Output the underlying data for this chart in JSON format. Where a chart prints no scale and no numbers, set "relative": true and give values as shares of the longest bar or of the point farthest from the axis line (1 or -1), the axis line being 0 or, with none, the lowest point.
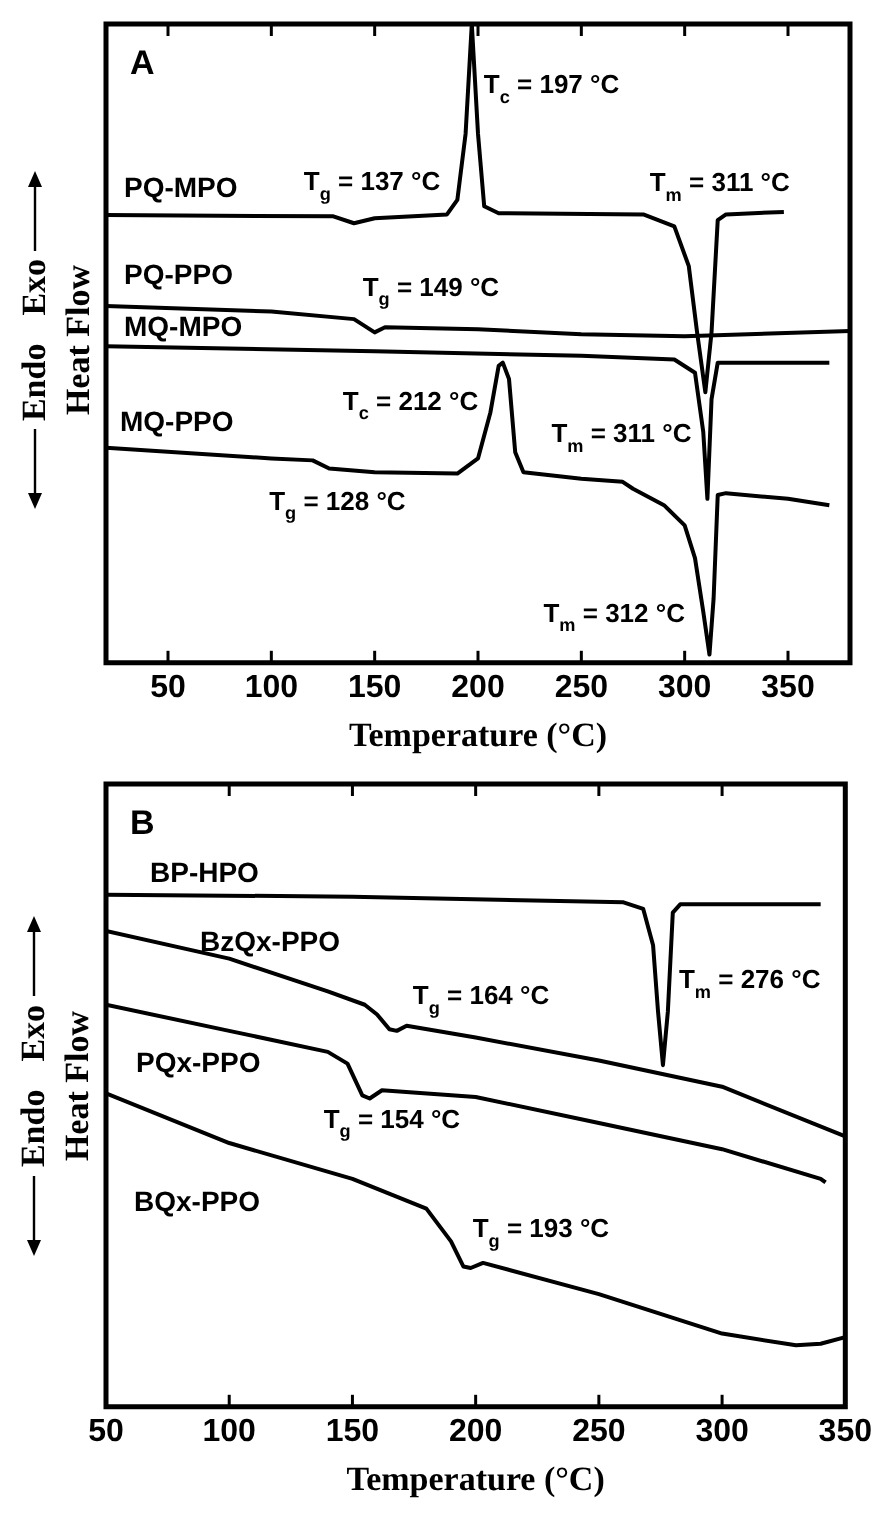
{
  "chart_data": [
    {
      "type": "line",
      "title": "A",
      "xlabel": "Temperature (°C)",
      "ylabel": "Heat Flow",
      "relative": true,
      "legend": false,
      "marker": "none",
      "xlim": [
        20,
        380
      ],
      "xticks": [
        50,
        100,
        150,
        200,
        250,
        300,
        350
      ],
      "series": [
        {
          "name": "PQ-MPO",
          "color": "#000000",
          "x": [
            20,
            130,
            140,
            150,
            185,
            190,
            194,
            197,
            200,
            203,
            210,
            280,
            295,
            302,
            306,
            310,
            313,
            316,
            320,
            348
          ],
          "values": [
            0.697,
            0.695,
            0.684,
            0.692,
            0.698,
            0.721,
            0.826,
            1.0,
            0.826,
            0.711,
            0.7,
            0.698,
            0.679,
            0.616,
            0.511,
            0.416,
            0.511,
            0.689,
            0.698,
            0.702
          ]
        },
        {
          "name": "PQ-PPO",
          "color": "#000000",
          "x": [
            20,
            100,
            140,
            150,
            155,
            200,
            250,
            300,
            380
          ],
          "values": [
            0.553,
            0.544,
            0.532,
            0.511,
            0.519,
            0.516,
            0.508,
            0.505,
            0.513
          ]
        },
        {
          "name": "MQ-MPO",
          "color": "#000000",
          "x": [
            20,
            150,
            250,
            295,
            305,
            309,
            311,
            313,
            316,
            370
          ],
          "values": [
            0.489,
            0.481,
            0.474,
            0.468,
            0.447,
            0.353,
            0.247,
            0.405,
            0.463,
            0.463
          ]
        },
        {
          "name": "MQ-PPO",
          "color": "#000000",
          "x": [
            20,
            100,
            120,
            128,
            150,
            190,
            200,
            206,
            210,
            212,
            215,
            218,
            222,
            250,
            270,
            275,
            290,
            300,
            305,
            309,
            312,
            314,
            316,
            320,
            350,
            370
          ],
          "values": [
            0.328,
            0.311,
            0.308,
            0.295,
            0.289,
            0.287,
            0.311,
            0.384,
            0.458,
            0.463,
            0.437,
            0.321,
            0.289,
            0.279,
            0.274,
            0.263,
            0.237,
            0.205,
            0.153,
            0.068,
            0,
            0.089,
            0.253,
            0.256,
            0.247,
            0.237
          ]
        }
      ],
      "annotations": [
        "Endo",
        "Exo",
        {
          "text": "T$_{c}$ = 197 °C",
          "x": 197,
          "y": 1.0
        },
        {
          "text": "T$_{g}$ = 137 °C",
          "x": 137,
          "y": 0.684
        },
        {
          "text": "T$_{m}$ = 311 °C",
          "x": 316,
          "y": 0.689
        },
        {
          "text": "T$_{g}$ = 149 °C",
          "x": 150,
          "y": 0.511
        },
        {
          "text": "T$_{c}$ = 212 °C",
          "x": 212,
          "y": 0.463
        },
        {
          "text": "T$_{m}$ = 311 °C",
          "x": 311,
          "y": 0.247
        },
        {
          "text": "T$_{g}$ = 128 °C",
          "x": 128,
          "y": 0.295
        },
        {
          "text": "T$_{m}$ = 312 °C",
          "x": 312,
          "y": 0
        }
      ]
    },
    {
      "type": "line",
      "title": "B",
      "xlabel": "Temperature (°C)",
      "ylabel": "Heat Flow",
      "relative": true,
      "legend": false,
      "marker": "none",
      "xlim": [
        50,
        350
      ],
      "xticks": [
        50,
        100,
        150,
        200,
        250,
        300,
        350
      ],
      "series": [
        {
          "name": "BP-HPO",
          "color": "#000000",
          "x": [
            50,
            150,
            260,
            268,
            272,
            274,
            276,
            278,
            280,
            283,
            340
          ],
          "values": [
            1.0,
            0.996,
            0.985,
            0.972,
            0.901,
            0.772,
            0.667,
            0.772,
            0.965,
            0.981,
            0.981
          ]
        },
        {
          "name": "BzQx-PPO",
          "color": "#000000",
          "x": [
            50,
            100,
            140,
            155,
            160,
            165,
            168,
            172,
            200,
            250,
            300,
            350
          ],
          "values": [
            0.929,
            0.875,
            0.811,
            0.785,
            0.766,
            0.737,
            0.734,
            0.744,
            0.721,
            0.676,
            0.625,
            0.528
          ]
        },
        {
          "name": "PQx-PPO",
          "color": "#000000",
          "x": [
            50,
            100,
            140,
            148,
            154,
            157,
            162,
            200,
            250,
            300,
            340,
            342
          ],
          "values": [
            0.785,
            0.734,
            0.693,
            0.67,
            0.608,
            0.602,
            0.618,
            0.605,
            0.554,
            0.503,
            0.445,
            0.438
          ]
        },
        {
          "name": "BQx-PPO",
          "color": "#000000",
          "x": [
            50,
            100,
            150,
            180,
            190,
            195,
            198,
            203,
            250,
            300,
            330,
            340,
            350
          ],
          "values": [
            0.612,
            0.515,
            0.445,
            0.387,
            0.323,
            0.274,
            0.271,
            0.281,
            0.22,
            0.143,
            0.12,
            0.123,
            0.136
          ]
        }
      ],
      "annotations": [
        "Endo",
        "Exo",
        {
          "text": "T$_{g}$ = 164 °C",
          "x": 168,
          "y": 0.734
        },
        {
          "text": "T$_{m}$ = 276 °C",
          "x": 276,
          "y": 0.667
        },
        {
          "text": "T$_{g}$ = 154 °C",
          "x": 157,
          "y": 0.602
        },
        {
          "text": "T$_{g}$ = 193 °C",
          "x": 198,
          "y": 0.271
        }
      ]
    }
  ]
}
